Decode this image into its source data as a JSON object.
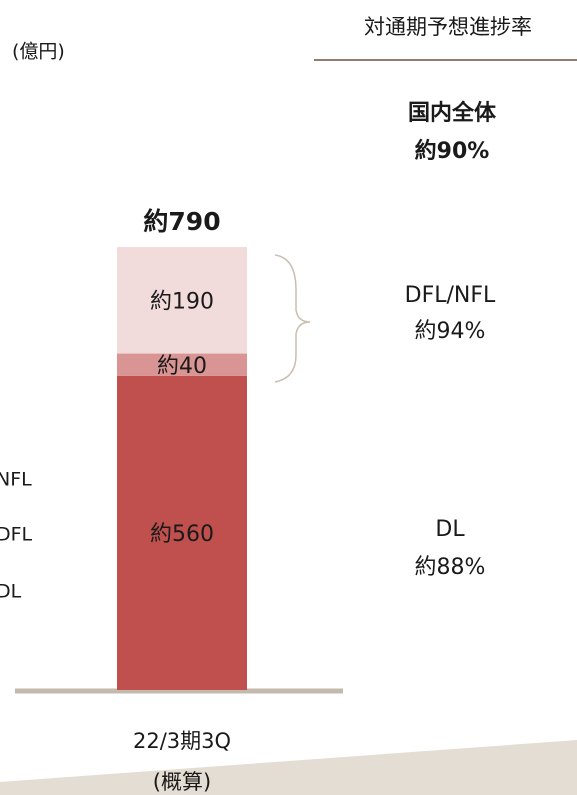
{
  "chart_data": {
    "type": "stacked_bar",
    "unit_label": "(億円)",
    "categories": [
      "22/3期3Q"
    ],
    "category_note": "(概算)",
    "series": [
      {
        "name": "DL",
        "color": "#c0504d",
        "values": [
          560
        ],
        "value_labels": [
          "約560"
        ]
      },
      {
        "name": "DFL",
        "color": "#d99594",
        "values": [
          40
        ],
        "value_labels": [
          "約40"
        ]
      },
      {
        "name": "NFL",
        "color": "#f2dcdb",
        "values": [
          190
        ],
        "value_labels": [
          "約190"
        ]
      }
    ],
    "total_label": "約790",
    "ylim": [
      0,
      790
    ],
    "progress_header": "対通期予想進捗率",
    "progress_overall": [
      "国内全体",
      "約90%"
    ],
    "progress_dfl_nfl": [
      "DFL/NFL",
      "約94%"
    ],
    "progress_dl": [
      "DL",
      "約88%"
    ]
  }
}
